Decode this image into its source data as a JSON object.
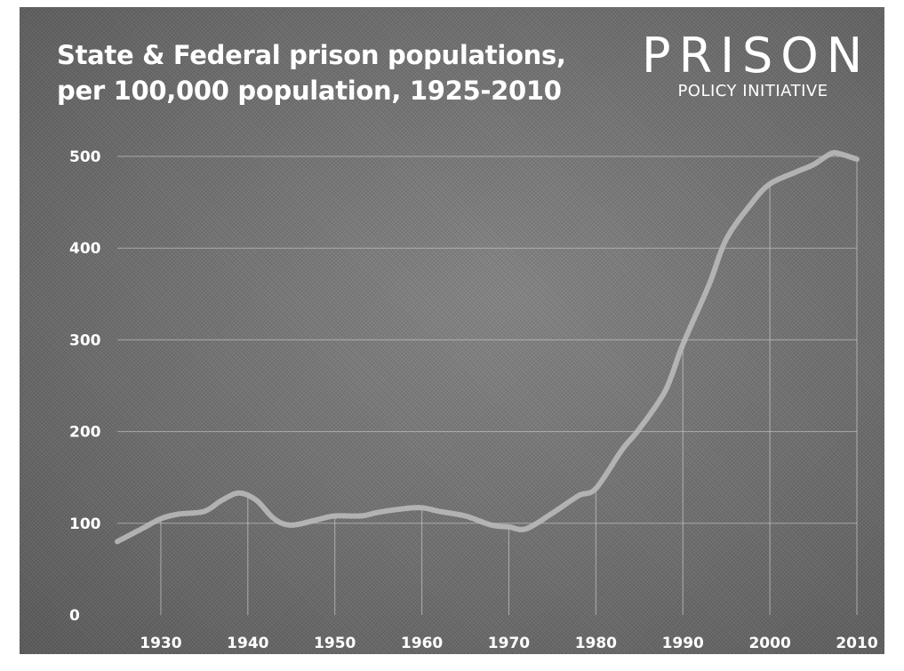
{
  "header": {
    "title_line1": "State & Federal prison populations,",
    "title_line2": "per 100,000 population, 1925-2010"
  },
  "logo": {
    "main": "PRISON",
    "sub": "POLICY INITIATIVE"
  },
  "colors": {
    "background": "#6f6f6f",
    "line": "#b9b9b9",
    "text": "#ffffff",
    "grid": "#d8d8d8"
  },
  "chart_data": {
    "type": "line",
    "title": "State & Federal prison populations, per 100,000 population, 1925-2010",
    "xlabel": "",
    "ylabel": "",
    "xlim": [
      1925,
      2010
    ],
    "ylim": [
      0,
      500
    ],
    "x_ticks": [
      1930,
      1940,
      1950,
      1960,
      1970,
      1980,
      1990,
      2000,
      2010
    ],
    "y_ticks": [
      0,
      100,
      200,
      300,
      400,
      500
    ],
    "grid": true,
    "legend": "none",
    "series": [
      {
        "x": [
          1925,
          1928,
          1930,
          1932,
          1935,
          1937,
          1939,
          1941,
          1943,
          1945,
          1948,
          1950,
          1953,
          1955,
          1958,
          1960,
          1962,
          1965,
          1968,
          1970,
          1972,
          1975,
          1978,
          1980,
          1983,
          1985,
          1988,
          1990,
          1993,
          1995,
          1998,
          2000,
          2003,
          2005,
          2007,
          2008,
          2010
        ],
        "y": [
          80,
          95,
          105,
          110,
          113,
          125,
          133,
          125,
          105,
          98,
          104,
          108,
          108,
          112,
          116,
          117,
          113,
          108,
          98,
          96,
          94,
          111,
          130,
          138,
          180,
          203,
          245,
          295,
          360,
          410,
          450,
          470,
          483,
          491,
          503,
          503,
          497
        ]
      }
    ]
  }
}
